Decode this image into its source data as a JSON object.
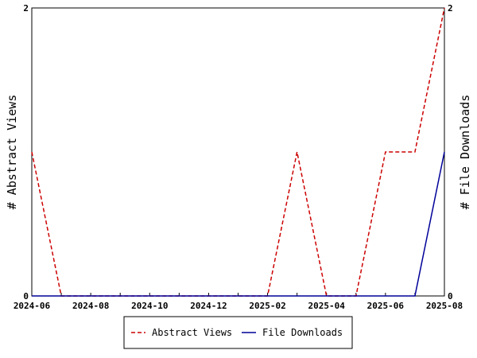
{
  "chart_data": {
    "type": "line",
    "title": "",
    "xlabel": "",
    "ylabel": "# Abstract Views",
    "y2label": "# File Downloads",
    "x": [
      "2024-06",
      "2024-07",
      "2024-08",
      "2024-09",
      "2024-10",
      "2024-11",
      "2024-12",
      "2025-01",
      "2025-02",
      "2025-03",
      "2025-04",
      "2025-05",
      "2025-06",
      "2025-07",
      "2025-08"
    ],
    "x_tick_labels": [
      "2024-06",
      "2024-08",
      "2024-10",
      "2024-12",
      "2025-02",
      "2025-04",
      "2025-06",
      "2025-08"
    ],
    "ylim": [
      0,
      2
    ],
    "y2lim": [
      0,
      2
    ],
    "y_tick_labels": [
      "0",
      "2"
    ],
    "y2_tick_labels": [
      "0",
      "2"
    ],
    "grid": false,
    "legend_position": "bottom",
    "series": [
      {
        "name": "Abstract Views",
        "axis": "left",
        "color": "#cc0000",
        "style": "dashed",
        "values": [
          1,
          0,
          0,
          0,
          0,
          0,
          0,
          0,
          0,
          1,
          0,
          0,
          1,
          1,
          2
        ]
      },
      {
        "name": "File Downloads",
        "axis": "right",
        "color": "#000099",
        "style": "solid",
        "values": [
          0,
          0,
          0,
          0,
          0,
          0,
          0,
          0,
          0,
          0,
          0,
          0,
          0,
          0,
          1
        ]
      }
    ]
  }
}
